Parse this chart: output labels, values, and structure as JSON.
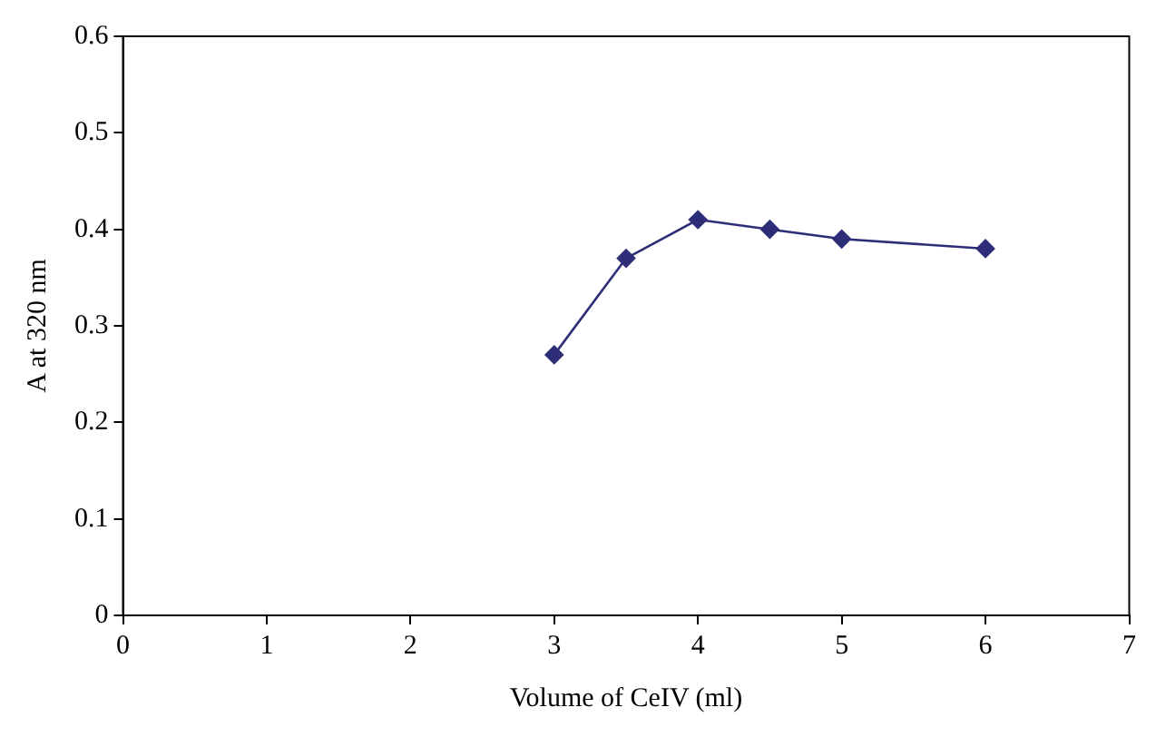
{
  "chart_data": {
    "type": "line",
    "xlabel": "Volume of CeIV (ml)",
    "ylabel": "A at 320 nm",
    "x": [
      3,
      3.5,
      4,
      4.5,
      5,
      6
    ],
    "series": [
      {
        "color": "#2e2e78",
        "values": [
          0.27,
          0.37,
          0.41,
          0.4,
          0.39,
          0.38
        ]
      }
    ],
    "xlim": [
      0,
      7
    ],
    "xticks": [
      0,
      1,
      2,
      3,
      4,
      5,
      6,
      7
    ],
    "ylim": [
      0,
      0.6
    ],
    "yticks": [
      0,
      0.1,
      0.2,
      0.3,
      0.4,
      0.5,
      0.6
    ],
    "grid": false,
    "legend": false,
    "marker": "diamond",
    "line_style": "solid"
  }
}
